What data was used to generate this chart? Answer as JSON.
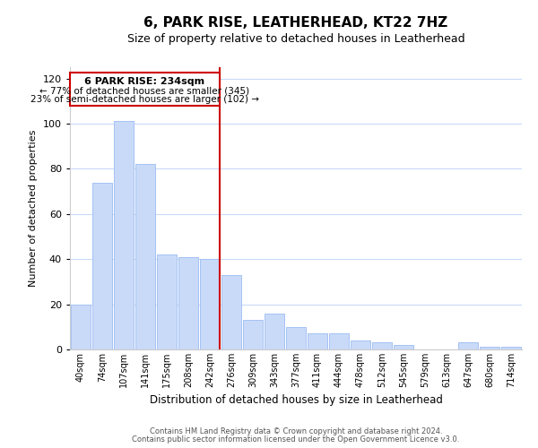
{
  "title": "6, PARK RISE, LEATHERHEAD, KT22 7HZ",
  "subtitle": "Size of property relative to detached houses in Leatherhead",
  "xlabel": "Distribution of detached houses by size in Leatherhead",
  "ylabel": "Number of detached properties",
  "bar_labels": [
    "40sqm",
    "74sqm",
    "107sqm",
    "141sqm",
    "175sqm",
    "208sqm",
    "242sqm",
    "276sqm",
    "309sqm",
    "343sqm",
    "377sqm",
    "411sqm",
    "444sqm",
    "478sqm",
    "512sqm",
    "545sqm",
    "579sqm",
    "613sqm",
    "647sqm",
    "680sqm",
    "714sqm"
  ],
  "bar_values": [
    20,
    74,
    101,
    82,
    42,
    41,
    40,
    33,
    13,
    16,
    10,
    7,
    7,
    4,
    3,
    2,
    0,
    0,
    3,
    1,
    1
  ],
  "bar_color": "#c9daf8",
  "bar_edge_color": "#a4c2f4",
  "reference_line_x_label": "242sqm",
  "reference_line_color": "#cc0000",
  "annotation_title": "6 PARK RISE: 234sqm",
  "annotation_line1": "← 77% of detached houses are smaller (345)",
  "annotation_line2": "23% of semi-detached houses are larger (102) →",
  "annotation_box_color": "#cc0000",
  "ylim": [
    0,
    125
  ],
  "yticks": [
    0,
    20,
    40,
    60,
    80,
    100,
    120
  ],
  "footer_line1": "Contains HM Land Registry data © Crown copyright and database right 2024.",
  "footer_line2": "Contains public sector information licensed under the Open Government Licence v3.0.",
  "background_color": "#ffffff",
  "grid_color": "#c9daf8"
}
